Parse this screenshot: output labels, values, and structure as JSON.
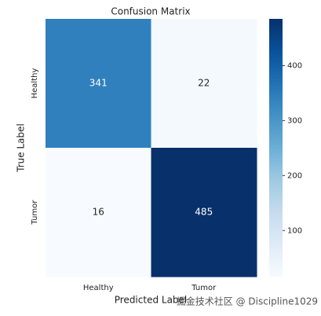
{
  "chart_data": {
    "type": "heatmap",
    "title": "Confusion Matrix",
    "x_label": "Predicted Label",
    "y_label": "True Label",
    "x_categories": [
      "Healthy",
      "Tumor"
    ],
    "y_categories": [
      "Healthy",
      "Tumor"
    ],
    "values": [
      [
        341,
        22
      ],
      [
        16,
        485
      ]
    ],
    "colormap": "Blues",
    "clim": [
      16,
      485
    ],
    "cticks": [
      100,
      200,
      300,
      400
    ],
    "watermark": "掘金技术社区 @ Discipline1029"
  }
}
